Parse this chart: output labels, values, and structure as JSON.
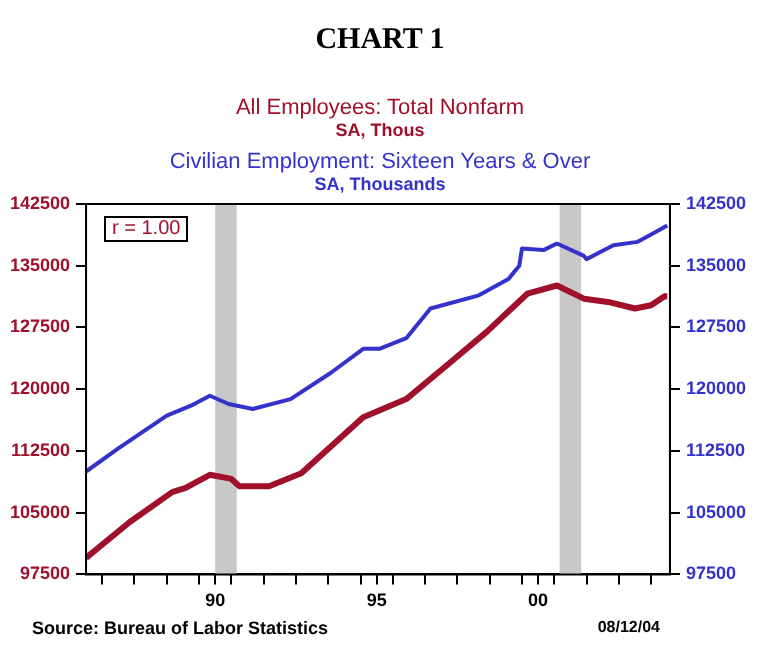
{
  "chart_data": {
    "type": "line",
    "title": "CHART 1",
    "annotations": [
      "SA, Thous",
      "SA, Thousands",
      "r = 1.00",
      "Source:  Bureau of Labor Statistics",
      "08/12/04"
    ],
    "series": [
      {
        "name": "All Employees: Total Nonfarm",
        "color": "#a0102a",
        "axis": "y",
        "x": [
          "1986-07",
          "1987-11",
          "1989-03",
          "1989-08",
          "1990-05",
          "1991-01",
          "1991-04",
          "1992-03",
          "1993-03",
          "1995-02",
          "1996-06",
          "1997-08",
          "1998-12",
          "2000-03",
          "2001-02",
          "2001-12",
          "2002-09",
          "2003-07",
          "2004-01",
          "2004-06",
          "2004-07"
        ],
        "values": [
          99500,
          103800,
          107500,
          108000,
          109600,
          109100,
          108200,
          108200,
          109800,
          116600,
          118800,
          122600,
          127000,
          131600,
          132600,
          131000,
          130600,
          129800,
          130200,
          131300,
          131300
        ]
      },
      {
        "name": "Civilian Employment: Sixteen Years & Over",
        "color": "#3333cc",
        "axis": "y2",
        "x": [
          "1986-07",
          "1987-07",
          "1989-01",
          "1989-10",
          "1990-05",
          "1990-12",
          "1991-09",
          "1992-11",
          "1994-02",
          "1995-02",
          "1995-08",
          "1996-06",
          "1997-03",
          "1998-09",
          "1999-08",
          "1999-12",
          "2000-01",
          "2000-09",
          "2001-02",
          "2001-12",
          "2002-01",
          "2002-11",
          "2003-08",
          "2004-01",
          "2004-07"
        ],
        "values": [
          110000,
          112800,
          116800,
          118000,
          119200,
          118200,
          117600,
          118800,
          122000,
          124900,
          124900,
          126200,
          129800,
          131400,
          133400,
          135000,
          137100,
          136900,
          137700,
          136200,
          135800,
          137500,
          137900,
          138800,
          139900
        ]
      }
    ],
    "xlim": [
      "1986-07",
      "2004-08"
    ],
    "xticks": [
      {
        "value": "1987-01",
        "label": null
      },
      {
        "value": "1988-01",
        "label": null
      },
      {
        "value": "1989-01",
        "label": null
      },
      {
        "value": "1990-01",
        "label": null
      },
      {
        "value": "1990-07",
        "label": "90"
      },
      {
        "value": "1991-01",
        "label": null
      },
      {
        "value": "1992-01",
        "label": null
      },
      {
        "value": "1993-01",
        "label": null
      },
      {
        "value": "1994-01",
        "label": null
      },
      {
        "value": "1995-01",
        "label": null
      },
      {
        "value": "1995-07",
        "label": "95"
      },
      {
        "value": "1996-01",
        "label": null
      },
      {
        "value": "1997-01",
        "label": null
      },
      {
        "value": "1998-01",
        "label": null
      },
      {
        "value": "1999-01",
        "label": null
      },
      {
        "value": "2000-01",
        "label": null
      },
      {
        "value": "2000-07",
        "label": "00"
      },
      {
        "value": "2001-01",
        "label": null
      },
      {
        "value": "2002-01",
        "label": null
      },
      {
        "value": "2003-01",
        "label": null
      },
      {
        "value": "2004-01",
        "label": null
      }
    ],
    "ylim": [
      97500,
      142500
    ],
    "yticks": [
      97500,
      105000,
      112500,
      120000,
      127500,
      135000,
      142500
    ],
    "y2lim": [
      97500,
      142500
    ],
    "y2ticks": [
      97500,
      105000,
      112500,
      120000,
      127500,
      135000,
      142500
    ],
    "bands": [
      {
        "axis": "x",
        "from": "1990-07",
        "to": "1991-03",
        "color": "#c8c8c8"
      },
      {
        "axis": "x",
        "from": "2001-03",
        "to": "2001-11",
        "color": "#c8c8c8"
      }
    ],
    "grid": false,
    "legend": false,
    "marker": "none",
    "line_style": "solid"
  }
}
